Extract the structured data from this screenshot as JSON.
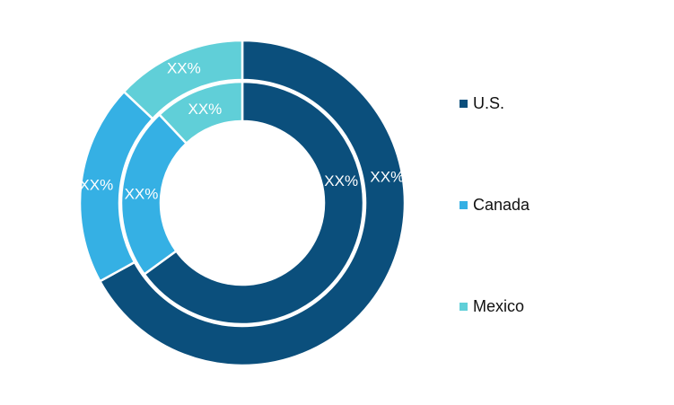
{
  "chart_data": {
    "type": "pie",
    "variant": "nested-donut",
    "categories": [
      "U.S.",
      "Canada",
      "Mexico"
    ],
    "colors": [
      "#0b4f7c",
      "#35b0e4",
      "#60cfd8"
    ],
    "rings": [
      {
        "ring": "outer",
        "values": [
          67,
          20,
          13
        ],
        "labels": [
          "XX%",
          "XX%",
          "XX%"
        ]
      },
      {
        "ring": "inner",
        "values": [
          65,
          23,
          12
        ],
        "labels": [
          "XX%",
          "XX%",
          "XX%"
        ]
      }
    ],
    "legend": {
      "position": "right",
      "entries": [
        "U.S.",
        "Canada",
        "Mexico"
      ]
    }
  }
}
